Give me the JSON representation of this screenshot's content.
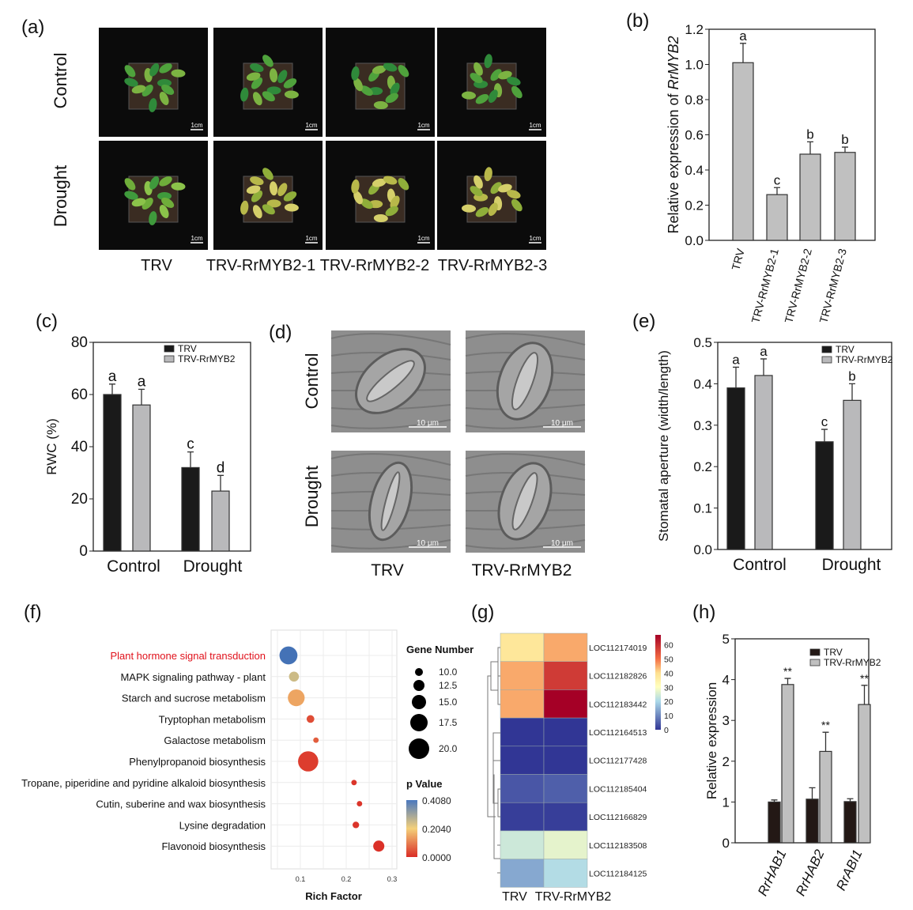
{
  "panels": {
    "a": {
      "label": "(a)",
      "rows": [
        "Control",
        "Drought"
      ],
      "columns": [
        "TRV",
        "TRV-RrMYB2-1",
        "TRV-RrMYB2-2",
        "TRV-RrMYB2-3"
      ],
      "scale_bar": "1cm"
    },
    "d": {
      "label": "(d)",
      "rows": [
        "Control",
        "Drought"
      ],
      "columns": [
        "TRV",
        "TRV-RrMYB2"
      ],
      "scale_bar": "10 μm"
    }
  },
  "colors": {
    "trv": "#1a1a1a",
    "rrmyb2": "#b9b9bb",
    "gray_bar": "#c0c0c0",
    "hab_black": "#231815",
    "highlight": "#e0111b"
  },
  "chart_data": [
    {
      "id": "b",
      "label": "(b)",
      "type": "bar",
      "ylabel_prefix": "Relative expression of ",
      "ylabel_italic": "RrMYB2",
      "categories": [
        "TRV",
        "TRV-RrMYB2-1",
        "TRV-RrMYB2-2",
        "TRV-RrMYB2-3"
      ],
      "values": [
        1.01,
        0.26,
        0.49,
        0.5
      ],
      "errors": [
        0.11,
        0.04,
        0.07,
        0.03
      ],
      "letters": [
        "a",
        "c",
        "b",
        "b"
      ],
      "ylim": [
        0,
        1.2
      ],
      "yticks": [
        "0.0",
        "0.2",
        "0.4",
        "0.6",
        "0.8",
        "1.0",
        "1.2"
      ]
    },
    {
      "id": "c",
      "label": "(c)",
      "type": "bar",
      "ylabel": "RWC (%)",
      "categories": [
        "Control",
        "Drought"
      ],
      "series": [
        {
          "name": "TRV",
          "values": [
            60,
            32
          ],
          "errors": [
            4,
            6
          ],
          "letters": [
            "a",
            "c"
          ]
        },
        {
          "name": "TRV-RrMYB2",
          "values": [
            56,
            23
          ],
          "errors": [
            6,
            6
          ],
          "letters": [
            "a",
            "d"
          ]
        }
      ],
      "ylim": [
        0,
        80
      ],
      "yticks": [
        "0",
        "20",
        "40",
        "60",
        "80"
      ],
      "legend": "top-right"
    },
    {
      "id": "e",
      "label": "(e)",
      "type": "bar",
      "ylabel": "Stomatal aperture (width/length)",
      "categories": [
        "Control",
        "Drought"
      ],
      "series": [
        {
          "name": "TRV",
          "values": [
            0.39,
            0.26
          ],
          "errors": [
            0.05,
            0.03
          ],
          "letters": [
            "a",
            "c"
          ]
        },
        {
          "name": "TRV-RrMYB2",
          "values": [
            0.42,
            0.36
          ],
          "errors": [
            0.04,
            0.04
          ],
          "letters": [
            "a",
            "b"
          ]
        }
      ],
      "ylim": [
        0,
        0.5
      ],
      "yticks": [
        "0.0",
        "0.1",
        "0.2",
        "0.3",
        "0.4",
        "0.5"
      ],
      "legend": "top-right"
    },
    {
      "id": "f",
      "label": "(f)",
      "type": "scatter",
      "xlabel": "Rich Factor",
      "xticks": [
        "0.1",
        "0.2",
        "0.3"
      ],
      "xlim": [
        0.04,
        0.31
      ],
      "categories": [
        "Plant hormone signal transduction",
        "MAPK signaling pathway - plant",
        "Starch and sucrose metabolism",
        "Tryptophan metabolism",
        "Galactose metabolism",
        "Phenylpropanoid biosynthesis",
        "Tropane, piperidine and pyridine alkaloid biosynthesis",
        "Cutin, suberine and wax biosynthesis",
        "Lysine degradation",
        "Flavonoid biosynthesis"
      ],
      "rich_factor": [
        0.074,
        0.086,
        0.091,
        0.122,
        0.134,
        0.117,
        0.217,
        0.229,
        0.221,
        0.271
      ],
      "gene_number": [
        19,
        12,
        18,
        10,
        8,
        21,
        8,
        8,
        9,
        13
      ],
      "p_value": [
        0.408,
        0.25,
        0.15,
        0.04,
        0.06,
        0.02,
        0.01,
        0.01,
        0.01,
        0.005
      ],
      "size_legend_title": "Gene Number",
      "size_legend": [
        "10.0",
        "12.5",
        "15.0",
        "17.5",
        "20.0"
      ],
      "color_legend_title": "p Value",
      "color_legend": [
        "0.4080",
        "0.2040",
        "0.0000"
      ],
      "highlight_index": 0,
      "grid": true
    },
    {
      "id": "g",
      "label": "(g)",
      "type": "heatmap",
      "columns": [
        "TRV",
        "TRV-RrMYB2"
      ],
      "rows": [
        "LOC112174019",
        "LOC112182826",
        "LOC112183442",
        "LOC112164513",
        "LOC112177428",
        "LOC112185404",
        "LOC112166829",
        "LOC112183508",
        "LOC112184125"
      ],
      "values": [
        [
          38,
          45
        ],
        [
          45,
          58
        ],
        [
          45,
          67
        ],
        [
          0,
          0
        ],
        [
          0,
          0
        ],
        [
          4,
          5
        ],
        [
          1,
          1
        ],
        [
          24,
          27
        ],
        [
          14,
          21
        ]
      ],
      "colorbar_ticks": [
        "0",
        "10",
        "20",
        "30",
        "40",
        "50",
        "60"
      ],
      "colorbar_range": [
        0,
        67
      ]
    },
    {
      "id": "h",
      "label": "(h)",
      "type": "bar",
      "ylabel": "Relative expression",
      "categories": [
        "RrHAB1",
        "RrHAB2",
        "RrABI1"
      ],
      "series": [
        {
          "name": "TRV",
          "values": [
            1.0,
            1.07,
            1.01
          ],
          "errors": [
            0.05,
            0.28,
            0.07
          ]
        },
        {
          "name": "TRV-RrMYB2",
          "values": [
            3.88,
            2.24,
            3.39
          ],
          "errors": [
            0.15,
            0.47,
            0.47
          ]
        }
      ],
      "significance": [
        "**",
        "**",
        "**"
      ],
      "ylim": [
        0,
        5
      ],
      "yticks": [
        "0",
        "1",
        "2",
        "3",
        "4",
        "5"
      ],
      "legend": "top-right"
    }
  ]
}
